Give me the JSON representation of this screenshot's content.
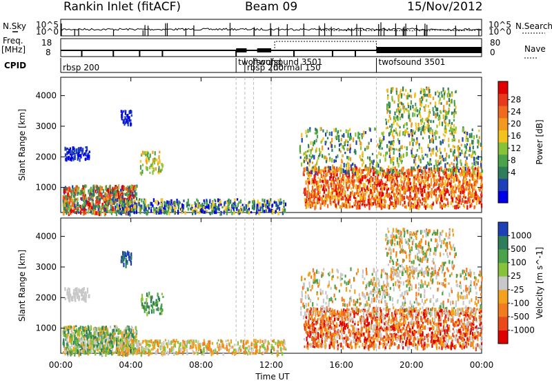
{
  "header": {
    "station": "Rankin Inlet (fitACF)",
    "beam": "Beam 09",
    "date": "15/Nov/2012"
  },
  "strip_labels": {
    "nsky": "N.Sky",
    "freq_line1": "Freq.",
    "freq_line2": "[MHz]",
    "cpid": "CPID",
    "nsearch": "N.Search",
    "nave": "Nave",
    "nsky_ticks": [
      "10^5",
      "10^0"
    ],
    "nsearch_ticks": [
      "10^5",
      "10^0"
    ],
    "freq_ticks": [
      "18",
      "8"
    ],
    "nave_ticks": [
      "80",
      "0"
    ]
  },
  "cpid_segments": [
    {
      "label": "rbsp 200",
      "start_h": 0.0
    },
    {
      "label": "twofsound",
      "start_h": 10.0
    },
    {
      "label": "rbsp 200",
      "start_h": 10.5
    },
    {
      "label": "twofsound 3501",
      "start_h": 11.0
    },
    {
      "label": "normal 150",
      "start_h": 12.0
    },
    {
      "label": "twofsound 3501",
      "start_h": 18.0
    }
  ],
  "chart_data": [
    {
      "type": "heatmap",
      "name": "power",
      "ylabel": "Slant Range [km]",
      "xlabel": "Time UT",
      "x_ticks": [
        "00:00",
        "04:00",
        "08:00",
        "12:00",
        "16:00",
        "20:00",
        "00:00"
      ],
      "x_range_h": [
        0,
        24
      ],
      "y_ticks": [
        1000,
        2000,
        3000,
        4000
      ],
      "y_range_km": [
        180,
        4600
      ],
      "colorbar": {
        "label": "Power [dB]",
        "ticks": [
          "28",
          "24",
          "20",
          "16",
          "12",
          "8",
          "4"
        ],
        "colors": [
          "#0000e6",
          "#1f3fb8",
          "#2e7d5a",
          "#4aa34a",
          "#88c23a",
          "#f2c21f",
          "#f29a1f",
          "#f26a1f",
          "#e83a1a",
          "#e00000"
        ]
      }
    },
    {
      "type": "heatmap",
      "name": "velocity",
      "ylabel": "Slant Range [km]",
      "xlabel": "Time UT",
      "x_ticks": [
        "00:00",
        "04:00",
        "08:00",
        "12:00",
        "16:00",
        "20:00",
        "00:00"
      ],
      "x_range_h": [
        0,
        24
      ],
      "y_ticks": [
        1000,
        2000,
        3000,
        4000
      ],
      "y_range_km": [
        180,
        4600
      ],
      "colorbar": {
        "label": "Velocity [m s^-1]",
        "ticks": [
          "1000",
          "500",
          "100",
          "25",
          "-25",
          "-100",
          "-500",
          "-1000"
        ],
        "colors": [
          "#1f3fb8",
          "#2e7d5a",
          "#4aa34a",
          "#88c23a",
          "#c8c8c8",
          "#f2a21f",
          "#f27a1f",
          "#e84a1a",
          "#e00000"
        ]
      }
    }
  ]
}
